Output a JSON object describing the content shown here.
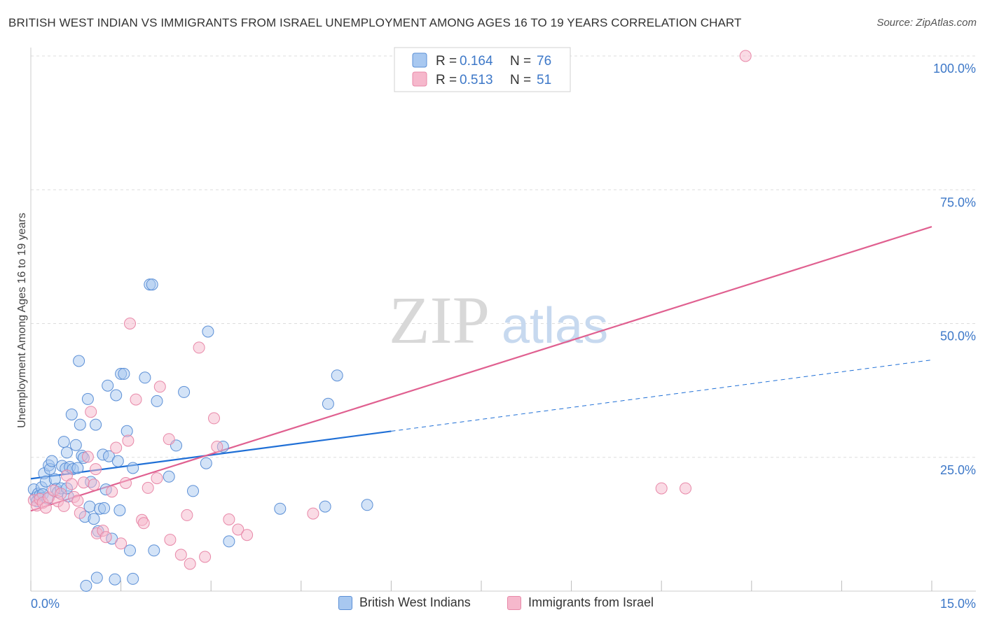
{
  "title": "BRITISH WEST INDIAN VS IMMIGRANTS FROM ISRAEL UNEMPLOYMENT AMONG AGES 16 TO 19 YEARS CORRELATION CHART",
  "source": "Source: ZipAtlas.com",
  "watermark": {
    "zip": "ZIP",
    "atlas": "atlas"
  },
  "colors": {
    "blue_fill": "#a8c8f0",
    "blue_stroke": "#5b8fd6",
    "blue_line": "#1f6fd6",
    "pink_fill": "#f6b8cc",
    "pink_stroke": "#e888a8",
    "pink_line": "#e06090",
    "tick_label": "#3d78c8",
    "grid": "#dddddd"
  },
  "legend": {
    "entries": [
      {
        "r_label": "R =",
        "r_value": "0.164",
        "n_label": "N =",
        "n_value": "76",
        "color": "blue"
      },
      {
        "r_label": "R =",
        "r_value": "0.513",
        "n_label": "N =",
        "n_value": "51",
        "color": "pink"
      }
    ]
  },
  "chart_data": {
    "type": "scatter",
    "title": "BRITISH WEST INDIAN VS IMMIGRANTS FROM ISRAEL UNEMPLOYMENT AMONG AGES 16 TO 19 YEARS CORRELATION CHART",
    "xlabel": "",
    "ylabel": "Unemployment Among Ages 16 to 19 years",
    "xlim": [
      0,
      15
    ],
    "ylim": [
      0,
      100
    ],
    "x_tick_labels": [
      "0.0%",
      "15.0%"
    ],
    "y_tick_labels": [
      "25.0%",
      "50.0%",
      "75.0%",
      "100.0%"
    ],
    "y_ticks": [
      25,
      50,
      75,
      100
    ],
    "grid": true,
    "legend_position": "top-center",
    "series": [
      {
        "name": "British West Indians",
        "color": "blue",
        "r": 0.164,
        "n": 76,
        "trend": {
          "solid_x": [
            0,
            6.0
          ],
          "dashed_x": [
            6.0,
            15.0
          ],
          "intercept": 21.0,
          "slope": 1.48
        },
        "points": [
          [
            0.05,
            19.0
          ],
          [
            0.08,
            17.5
          ],
          [
            0.1,
            16.8
          ],
          [
            0.12,
            18.2
          ],
          [
            0.15,
            17.9
          ],
          [
            0.18,
            19.4
          ],
          [
            0.2,
            18.1
          ],
          [
            0.22,
            22.0
          ],
          [
            0.25,
            20.5
          ],
          [
            0.3,
            23.5
          ],
          [
            0.32,
            22.8
          ],
          [
            0.35,
            24.3
          ],
          [
            0.4,
            20.9
          ],
          [
            0.42,
            19.1
          ],
          [
            0.45,
            18.5
          ],
          [
            0.5,
            19.2
          ],
          [
            0.52,
            23.4
          ],
          [
            0.55,
            27.9
          ],
          [
            0.58,
            22.9
          ],
          [
            0.6,
            25.9
          ],
          [
            0.62,
            17.7
          ],
          [
            0.65,
            23.2
          ],
          [
            0.68,
            33.0
          ],
          [
            0.7,
            22.8
          ],
          [
            0.75,
            27.3
          ],
          [
            0.78,
            23.0
          ],
          [
            0.8,
            43.0
          ],
          [
            0.82,
            31.1
          ],
          [
            0.85,
            25.3
          ],
          [
            0.88,
            24.9
          ],
          [
            0.9,
            13.9
          ],
          [
            0.92,
            1.0
          ],
          [
            0.95,
            35.9
          ],
          [
            0.98,
            15.8
          ],
          [
            1.0,
            20.4
          ],
          [
            1.05,
            13.5
          ],
          [
            1.08,
            31.1
          ],
          [
            1.1,
            2.5
          ],
          [
            1.12,
            11.2
          ],
          [
            1.15,
            15.4
          ],
          [
            1.2,
            25.5
          ],
          [
            1.22,
            15.5
          ],
          [
            1.25,
            19.0
          ],
          [
            1.28,
            38.4
          ],
          [
            1.3,
            25.2
          ],
          [
            1.35,
            9.8
          ],
          [
            1.4,
            2.2
          ],
          [
            1.42,
            36.6
          ],
          [
            1.45,
            24.3
          ],
          [
            1.48,
            15.1
          ],
          [
            1.5,
            40.6
          ],
          [
            1.55,
            40.6
          ],
          [
            1.6,
            29.9
          ],
          [
            1.65,
            7.6
          ],
          [
            1.7,
            2.3
          ],
          [
            1.9,
            39.9
          ],
          [
            1.98,
            57.3
          ],
          [
            2.02,
            57.3
          ],
          [
            2.05,
            7.6
          ],
          [
            2.1,
            35.5
          ],
          [
            2.3,
            21.4
          ],
          [
            2.42,
            27.2
          ],
          [
            2.55,
            37.2
          ],
          [
            2.7,
            18.7
          ],
          [
            2.92,
            23.9
          ],
          [
            2.95,
            48.5
          ],
          [
            3.2,
            27.0
          ],
          [
            3.3,
            9.3
          ],
          [
            4.15,
            15.4
          ],
          [
            4.9,
            15.8
          ],
          [
            4.95,
            35.0
          ],
          [
            5.1,
            40.3
          ],
          [
            5.6,
            16.1
          ],
          [
            1.7,
            23.0
          ],
          [
            0.6,
            19.2
          ],
          [
            0.28,
            17.3
          ]
        ]
      },
      {
        "name": "Immigrants from Israel",
        "color": "pink",
        "r": 0.513,
        "n": 51,
        "trend": {
          "solid_x": [
            0,
            15.0
          ],
          "intercept": 15.0,
          "slope": 3.54
        },
        "points": [
          [
            0.05,
            17.0
          ],
          [
            0.1,
            16.0
          ],
          [
            0.15,
            17.2
          ],
          [
            0.2,
            16.5
          ],
          [
            0.25,
            15.6
          ],
          [
            0.3,
            17.5
          ],
          [
            0.38,
            18.8
          ],
          [
            0.45,
            16.8
          ],
          [
            0.5,
            18.2
          ],
          [
            0.55,
            15.9
          ],
          [
            0.6,
            21.6
          ],
          [
            0.68,
            20.0
          ],
          [
            0.72,
            17.6
          ],
          [
            0.78,
            16.9
          ],
          [
            0.82,
            14.6
          ],
          [
            0.88,
            20.3
          ],
          [
            0.95,
            25.1
          ],
          [
            1.0,
            33.5
          ],
          [
            1.05,
            19.9
          ],
          [
            1.08,
            22.8
          ],
          [
            1.1,
            10.8
          ],
          [
            1.2,
            11.3
          ],
          [
            1.25,
            10.1
          ],
          [
            1.35,
            18.6
          ],
          [
            1.42,
            26.8
          ],
          [
            1.5,
            8.9
          ],
          [
            1.58,
            20.2
          ],
          [
            1.62,
            28.1
          ],
          [
            1.65,
            50.0
          ],
          [
            1.75,
            35.8
          ],
          [
            1.85,
            13.3
          ],
          [
            1.88,
            12.7
          ],
          [
            1.95,
            19.3
          ],
          [
            2.1,
            21.1
          ],
          [
            2.15,
            38.2
          ],
          [
            2.3,
            28.4
          ],
          [
            2.32,
            9.6
          ],
          [
            2.5,
            6.8
          ],
          [
            2.6,
            14.2
          ],
          [
            2.65,
            5.1
          ],
          [
            2.8,
            45.5
          ],
          [
            2.9,
            6.4
          ],
          [
            3.05,
            32.3
          ],
          [
            3.1,
            27.0
          ],
          [
            3.3,
            13.4
          ],
          [
            3.45,
            11.5
          ],
          [
            3.6,
            10.5
          ],
          [
            4.7,
            14.5
          ],
          [
            10.5,
            19.2
          ],
          [
            10.9,
            19.2
          ],
          [
            11.9,
            100.0
          ]
        ]
      }
    ]
  }
}
